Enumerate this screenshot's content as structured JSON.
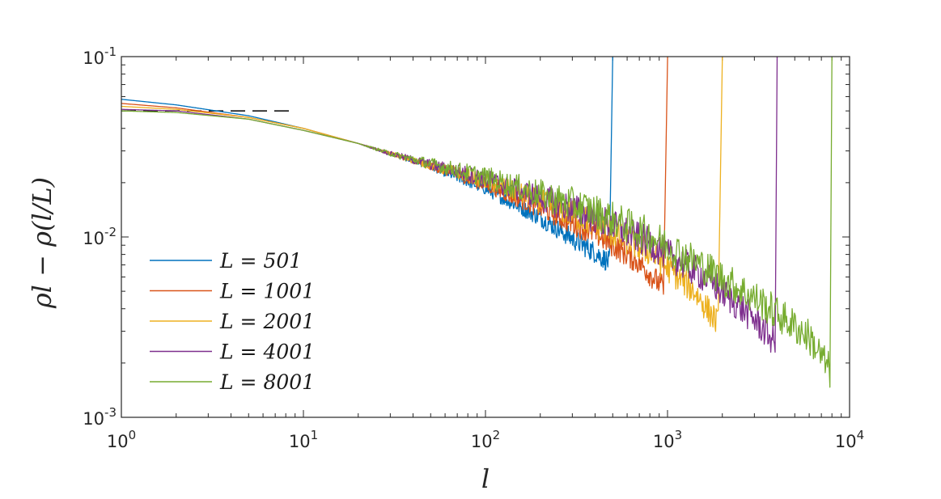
{
  "chart_data": {
    "type": "line",
    "x_scale": "log",
    "y_scale": "log",
    "xlim": [
      1,
      10000
    ],
    "ylim": [
      0.001,
      0.1
    ],
    "xlabel": "l",
    "ylabel": "ρl − ρ(l/L)",
    "x_ticks": [
      {
        "value": 1,
        "base": "10",
        "exp": "0"
      },
      {
        "value": 10,
        "base": "10",
        "exp": "1"
      },
      {
        "value": 100,
        "base": "10",
        "exp": "2"
      },
      {
        "value": 1000,
        "base": "10",
        "exp": "3"
      },
      {
        "value": 10000,
        "base": "10",
        "exp": "4"
      }
    ],
    "y_ticks": [
      {
        "value": 0.001,
        "base": "10",
        "exp": "-3"
      },
      {
        "value": 0.01,
        "base": "10",
        "exp": "-2"
      },
      {
        "value": 0.1,
        "base": "10",
        "exp": "-1"
      }
    ],
    "legend_position": "bottom-left",
    "reference_line": {
      "style": "dashed",
      "color": "#000000",
      "x": [
        1,
        9
      ],
      "y": [
        0.05,
        0.05
      ]
    },
    "series": [
      {
        "name": "L = 501",
        "L": 501,
        "color": "#0072BD",
        "x": [
          1,
          2,
          5,
          10,
          20,
          30,
          50,
          100,
          200,
          300,
          400,
          480,
          500
        ],
        "y": [
          0.058,
          0.054,
          0.047,
          0.04,
          0.033,
          0.029,
          0.0245,
          0.0185,
          0.0128,
          0.0098,
          0.0082,
          0.0072,
          0.1
        ],
        "noise": 0.06
      },
      {
        "name": "L = 1001",
        "L": 1001,
        "color": "#D95319",
        "x": [
          1,
          2,
          5,
          10,
          20,
          30,
          50,
          100,
          200,
          400,
          700,
          950,
          1001
        ],
        "y": [
          0.055,
          0.052,
          0.046,
          0.04,
          0.033,
          0.029,
          0.0248,
          0.0195,
          0.0145,
          0.0105,
          0.0072,
          0.0052,
          0.1
        ],
        "noise": 0.07
      },
      {
        "name": "L = 2001",
        "L": 2001,
        "color": "#EDB120",
        "x": [
          1,
          2,
          5,
          10,
          20,
          30,
          50,
          100,
          200,
          400,
          800,
          1400,
          1900,
          2001
        ],
        "y": [
          0.053,
          0.051,
          0.046,
          0.04,
          0.033,
          0.029,
          0.025,
          0.0205,
          0.0158,
          0.0118,
          0.0082,
          0.005,
          0.0033,
          0.1
        ],
        "noise": 0.08
      },
      {
        "name": "L = 4001",
        "L": 4001,
        "color": "#7E2F8E",
        "x": [
          1,
          2,
          5,
          10,
          20,
          30,
          50,
          100,
          200,
          400,
          800,
          1600,
          3000,
          3900,
          4001
        ],
        "y": [
          0.051,
          0.05,
          0.045,
          0.039,
          0.033,
          0.029,
          0.0252,
          0.021,
          0.0165,
          0.0128,
          0.0092,
          0.006,
          0.0035,
          0.0026,
          0.1
        ],
        "noise": 0.09
      },
      {
        "name": "L = 8001",
        "L": 8001,
        "color": "#77AC30",
        "x": [
          1,
          2,
          5,
          10,
          20,
          30,
          50,
          100,
          200,
          400,
          800,
          1600,
          3200,
          6000,
          7800,
          8001
        ],
        "y": [
          0.05,
          0.049,
          0.045,
          0.039,
          0.033,
          0.029,
          0.0255,
          0.0215,
          0.0172,
          0.0138,
          0.0102,
          0.0068,
          0.0044,
          0.0028,
          0.0018,
          0.1
        ],
        "noise": 0.1
      }
    ]
  }
}
